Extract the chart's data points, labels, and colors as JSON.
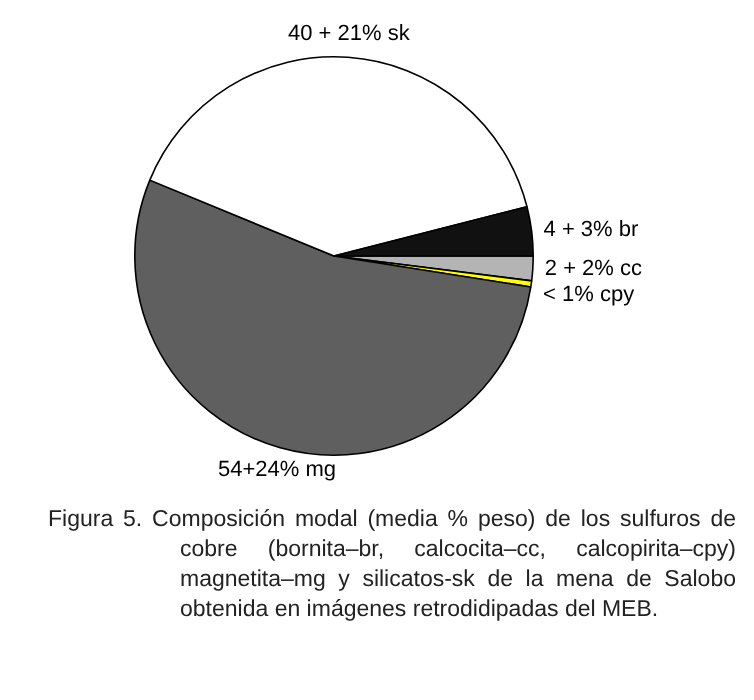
{
  "chart_data": {
    "type": "pie",
    "categories": [
      "2 + 2% cc",
      "< 1% cpy",
      "54+24% mg",
      "40 + 21% sk",
      "4 + 3% br"
    ],
    "values": [
      2,
      0.5,
      54,
      40,
      4
    ],
    "colors": [
      "#b4b4b4",
      "#ffff00",
      "#5f5f5f",
      "#ffffff",
      "#111111"
    ],
    "legend": false,
    "annotations": [
      "Figura 5. Composición modal (media % peso) de los sulfuros de cobre (bornita–br, calcocita–cc, calcopirita–cpy) magnetita–mg y silicatos-sk de la mena de Salobo obtenida en imágenes retrodidipadas del MEB."
    ]
  }
}
